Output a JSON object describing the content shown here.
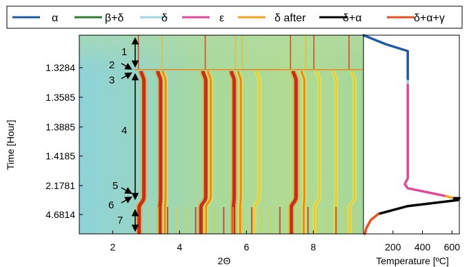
{
  "chart_data": [
    {
      "type": "heatmap",
      "title": "",
      "xlabel": "2Θ",
      "ylabel": "Time [Hour]",
      "xlim": [
        1.0,
        9.5
      ],
      "x_ticks": [
        2,
        4,
        6,
        8
      ],
      "y_tick_labels": [
        "1.3284",
        "1.3585",
        "1.3885",
        "1.4185",
        "2.1781",
        "4.6814"
      ],
      "y_axis_direction": "time increases downward",
      "colormap": [
        "#8fd3d8",
        "#b8dc8c",
        "#e8e24a",
        "#f0a030",
        "#c0301c"
      ],
      "background_level": "light teal-green",
      "diffraction_peaks_2theta": [
        {
          "position": 2.85,
          "strength": "strong"
        },
        {
          "position": 3.35,
          "strength": "strong"
        },
        {
          "position": 4.7,
          "strength": "strong"
        },
        {
          "position": 5.55,
          "strength": "strong"
        },
        {
          "position": 7.4,
          "strength": "strong"
        },
        {
          "position": 3.5,
          "strength": "medium"
        },
        {
          "position": 4.85,
          "strength": "medium"
        },
        {
          "position": 5.75,
          "strength": "medium"
        },
        {
          "position": 6.3,
          "strength": "weak"
        },
        {
          "position": 7.65,
          "strength": "medium"
        },
        {
          "position": 8.1,
          "strength": "weak"
        },
        {
          "position": 8.6,
          "strength": "weak"
        },
        {
          "position": 9.15,
          "strength": "weak"
        }
      ],
      "phase_markers": [
        {
          "label": "1",
          "kind": "double-arrow span"
        },
        {
          "label": "2",
          "kind": "pointer"
        },
        {
          "label": "3",
          "kind": "pointer"
        },
        {
          "label": "4",
          "kind": "double-arrow span"
        },
        {
          "label": "5",
          "kind": "pointer"
        },
        {
          "label": "6",
          "kind": "pointer"
        },
        {
          "label": "7",
          "kind": "double-arrow span"
        }
      ]
    },
    {
      "type": "line",
      "title": "",
      "xlabel": "Temperature [ºC]",
      "ylabel": "",
      "xlim": [
        0,
        650
      ],
      "x_ticks": [
        200,
        400,
        600
      ],
      "ylim": [
        0,
        1
      ],
      "y_axis_direction": "shares the time axis of the heatmap (0 = top, 1 = bottom)",
      "series": [
        {
          "name": "α",
          "color": "#1f5aa6",
          "points": [
            [
              0,
              0.0
            ],
            [
              150,
              0.045
            ],
            [
              300,
              0.08
            ],
            [
              300,
              0.23
            ]
          ]
        },
        {
          "name": "δ",
          "color": "#9fd6e0",
          "points": [
            [
              300,
              0.23
            ],
            [
              300,
              0.25
            ]
          ]
        },
        {
          "name": "ε",
          "color": "#e0489a",
          "points": [
            [
              300,
              0.25
            ],
            [
              300,
              0.72
            ],
            [
              280,
              0.75
            ],
            [
              300,
              0.77
            ],
            [
              560,
              0.81
            ]
          ]
        },
        {
          "name": "δ after",
          "color": "#f4a020",
          "points": [
            [
              560,
              0.81
            ],
            [
              615,
              0.82
            ]
          ]
        },
        {
          "name": "δ+α",
          "color": "#000000",
          "points": [
            [
              615,
              0.82
            ],
            [
              650,
              0.82
            ],
            [
              640,
              0.83
            ],
            [
              300,
              0.86
            ],
            [
              200,
              0.88
            ],
            [
              100,
              0.9
            ]
          ]
        },
        {
          "name": "δ+α+γ",
          "color": "#e8501e",
          "points": [
            [
              100,
              0.9
            ],
            [
              50,
              0.93
            ],
            [
              20,
              0.97
            ],
            [
              10,
              1.0
            ]
          ]
        }
      ]
    }
  ],
  "legend": [
    {
      "label": "α",
      "color": "#1f5aa6"
    },
    {
      "label": "β+δ",
      "color": "#2e7d32"
    },
    {
      "label": "δ",
      "color": "#9fd6e0"
    },
    {
      "label": "ε",
      "color": "#e0489a"
    },
    {
      "label": "δ after",
      "color": "#f4a020"
    },
    {
      "label": "δ+α",
      "color": "#000000"
    },
    {
      "label": "δ+α+γ",
      "color": "#e8501e"
    }
  ]
}
